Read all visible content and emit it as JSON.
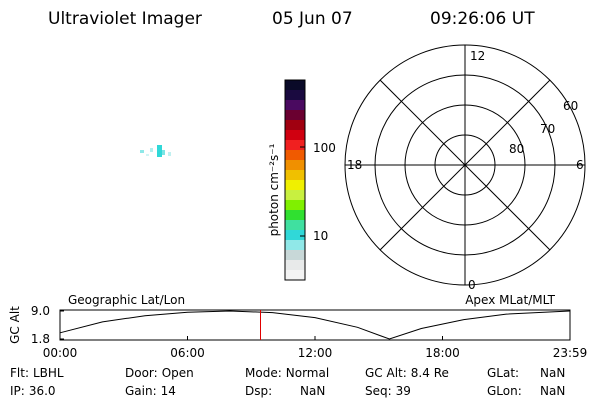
{
  "header": {
    "instrument": "Ultraviolet Imager",
    "date": "05 Jun 07",
    "time": "09:26:06 UT"
  },
  "colorbar": {
    "unit_label": "photon cm⁻²s⁻¹",
    "tick_labels": [
      "100",
      "10"
    ]
  },
  "polar": {
    "mlt_labels": [
      "12",
      "18",
      "6",
      "0"
    ],
    "lat_labels": [
      "60",
      "70",
      "80"
    ]
  },
  "altitude_plot": {
    "type": "line",
    "left_label": "Geographic Lat/Lon",
    "right_label": "Apex MLat/MLT",
    "y_label": "GC Alt",
    "x": [
      0,
      2,
      4,
      6,
      8,
      10,
      12,
      14,
      15.5,
      17,
      19,
      21,
      24
    ],
    "values": [
      3.4,
      6.2,
      7.8,
      8.7,
      9.0,
      8.6,
      7.3,
      4.8,
      1.8,
      4.5,
      6.8,
      8.2,
      9.0
    ],
    "xlim": [
      0,
      24
    ],
    "xticks": [
      {
        "value": 0,
        "label": "00:00"
      },
      {
        "value": 6,
        "label": "06:00"
      },
      {
        "value": 12,
        "label": "12:00"
      },
      {
        "value": 18,
        "label": "18:00"
      },
      {
        "value": 24,
        "label": "23:59"
      }
    ],
    "ylim": [
      1.8,
      9.0
    ],
    "yticks": [
      {
        "value": 9.0,
        "label": "9.0"
      },
      {
        "value": 1.8,
        "label": "1.8"
      }
    ],
    "current_time": 9.435,
    "current_color": "#e00000"
  },
  "info": [
    [
      {
        "label": "Flt:",
        "value": "LBHL"
      },
      {
        "label": "Door:",
        "value": "Open"
      },
      {
        "label": "Mode:",
        "value": "Normal"
      },
      {
        "label": "GC Alt:",
        "value": "8.4 Re"
      },
      {
        "label": "GLat:",
        "value": "NaN"
      }
    ],
    [
      {
        "label": "IP:",
        "value": "36.0"
      },
      {
        "label": "Gain:",
        "value": "14"
      },
      {
        "label": "Dsp:",
        "value": "NaN"
      },
      {
        "label": "Seq:",
        "value": "39"
      },
      {
        "label": "GLon:",
        "value": "NaN"
      }
    ]
  ]
}
